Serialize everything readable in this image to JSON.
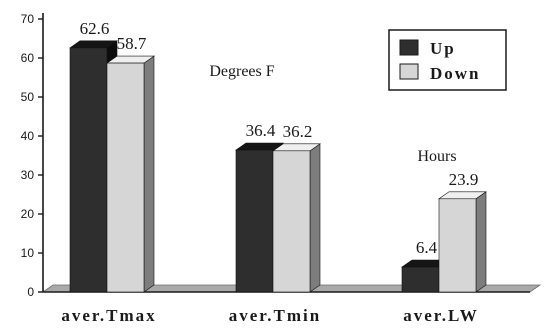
{
  "chart_data": {
    "type": "bar",
    "categories": [
      "aver.Tmax",
      "aver.Tmin",
      "aver.LW"
    ],
    "series": [
      {
        "name": "Up",
        "values": [
          62.6,
          36.4,
          6.4
        ],
        "color": "#2e2e2e"
      },
      {
        "name": "Down",
        "values": [
          58.7,
          36.2,
          23.9
        ],
        "color": "#d6d6d6"
      }
    ],
    "data_labels": [
      [
        "62.6",
        "36.4",
        "6.4"
      ],
      [
        "58.7",
        "36.2",
        "23.9"
      ]
    ],
    "y_ticks": [
      "0",
      "10",
      "20",
      "30",
      "40",
      "50",
      "60",
      "70"
    ],
    "ylim": [
      0,
      70
    ],
    "annotations": [
      "Degrees F",
      "Hours"
    ],
    "legend": {
      "placement": "top-right"
    },
    "style": "3d",
    "grid": false,
    "colors": {
      "up_front": "#2e2e2e",
      "up_top": "#151515",
      "up_side": "#0c0c0c",
      "down_front": "#d6d6d6",
      "down_top": "#efefef",
      "down_side": "#7d7d7d",
      "floor": "#a9a9a9",
      "axis": "#1a1a1a"
    }
  }
}
